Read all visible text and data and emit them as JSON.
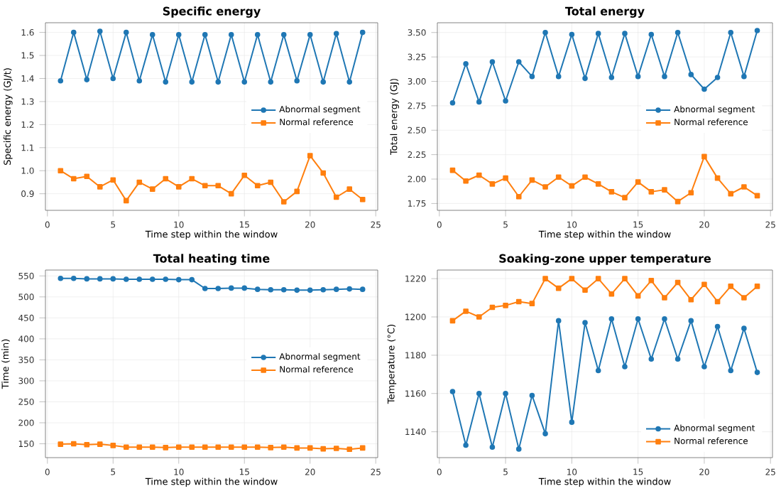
{
  "chart_data": [
    {
      "type": "line",
      "title": "Specific energy",
      "xlabel": "Time step within the window",
      "ylabel": "Specific energy (GJ/t)",
      "grid": true,
      "legend": "right",
      "x": [
        1,
        2,
        3,
        4,
        5,
        6,
        7,
        8,
        9,
        10,
        11,
        12,
        13,
        14,
        15,
        16,
        17,
        18,
        19,
        20,
        21,
        22,
        23,
        24
      ],
      "xlim": [
        -0.15,
        25.15
      ],
      "xticks": [
        0,
        5,
        10,
        15,
        20,
        25
      ],
      "ylim": [
        0.828,
        1.642
      ],
      "yticks": [
        0.9,
        {
          "value": 1.0,
          "label": "1.0"
        },
        1.1,
        1.2,
        1.3,
        1.4,
        1.5,
        1.6
      ],
      "series": [
        {
          "name": "Abnormal segment",
          "color": "#1f77b4",
          "marker": "circle",
          "values": [
            1.39,
            1.6,
            1.395,
            1.605,
            1.4,
            1.6,
            1.39,
            1.59,
            1.385,
            1.59,
            1.385,
            1.59,
            1.385,
            1.59,
            1.385,
            1.59,
            1.385,
            1.59,
            1.39,
            1.59,
            1.385,
            1.595,
            1.385,
            1.6
          ]
        },
        {
          "name": "Normal reference",
          "color": "#ff7f0e",
          "marker": "square",
          "values": [
            1.0,
            0.965,
            0.975,
            0.93,
            0.96,
            0.87,
            0.95,
            0.92,
            0.965,
            0.93,
            0.965,
            0.935,
            0.935,
            0.9,
            0.98,
            0.935,
            0.95,
            0.865,
            0.91,
            1.065,
            0.99,
            0.885,
            0.92,
            0.875
          ]
        }
      ]
    },
    {
      "type": "line",
      "title": "Total energy",
      "xlabel": "Time step within the window",
      "ylabel": "Total energy (GJ)",
      "grid": true,
      "legend": "right",
      "x": [
        1,
        2,
        3,
        4,
        5,
        6,
        7,
        8,
        9,
        10,
        11,
        12,
        13,
        14,
        15,
        16,
        17,
        18,
        19,
        20,
        21,
        22,
        23,
        24
      ],
      "xlim": [
        -0.15,
        25.15
      ],
      "xticks": [
        0,
        5,
        10,
        15,
        20,
        25
      ],
      "ylim": [
        1.68,
        3.6
      ],
      "yticks": [
        {
          "value": 1.75,
          "label": "1.75"
        },
        {
          "value": 2.0,
          "label": "2.00"
        },
        {
          "value": 2.25,
          "label": "2.25"
        },
        {
          "value": 2.5,
          "label": "2.50"
        },
        {
          "value": 2.75,
          "label": "2.75"
        },
        {
          "value": 3.0,
          "label": "3.00"
        },
        {
          "value": 3.25,
          "label": "3.25"
        },
        {
          "value": 3.5,
          "label": "3.50"
        }
      ],
      "series": [
        {
          "name": "Abnormal segment",
          "color": "#1f77b4",
          "marker": "circle",
          "values": [
            2.78,
            3.18,
            2.79,
            3.2,
            2.8,
            3.2,
            3.05,
            3.5,
            3.05,
            3.48,
            3.03,
            3.49,
            3.04,
            3.49,
            3.05,
            3.48,
            3.05,
            3.5,
            3.07,
            2.92,
            3.04,
            3.5,
            3.05,
            3.52
          ]
        },
        {
          "name": "Normal reference",
          "color": "#ff7f0e",
          "marker": "square",
          "values": [
            2.09,
            1.98,
            2.04,
            1.95,
            2.01,
            1.82,
            1.99,
            1.92,
            2.02,
            1.93,
            2.02,
            1.95,
            1.87,
            1.81,
            1.97,
            1.87,
            1.89,
            1.77,
            1.86,
            2.23,
            2.01,
            1.85,
            1.92,
            1.83
          ]
        }
      ]
    },
    {
      "type": "line",
      "title": "Total heating time",
      "xlabel": "Time step within the window",
      "ylabel": "Time (min)",
      "grid": true,
      "legend": "right",
      "x": [
        1,
        2,
        3,
        4,
        5,
        6,
        7,
        8,
        9,
        10,
        11,
        12,
        13,
        14,
        15,
        16,
        17,
        18,
        19,
        20,
        21,
        22,
        23,
        24
      ],
      "xlim": [
        -0.15,
        25.15
      ],
      "xticks": [
        0,
        5,
        10,
        15,
        20,
        25
      ],
      "ylim": [
        117,
        564
      ],
      "yticks": [
        150,
        200,
        250,
        300,
        350,
        400,
        450,
        500,
        550
      ],
      "series": [
        {
          "name": "Abnormal segment",
          "color": "#1f77b4",
          "marker": "circle",
          "values": [
            544,
            544,
            543,
            543,
            543,
            542,
            542,
            542,
            542,
            541,
            541,
            520,
            520,
            521,
            521,
            518,
            517,
            517,
            516,
            516,
            517,
            518,
            519,
            518
          ]
        },
        {
          "name": "Normal reference",
          "color": "#ff7f0e",
          "marker": "square",
          "values": [
            149,
            150,
            148,
            149,
            146,
            142,
            142,
            142,
            141,
            142,
            142,
            142,
            142,
            142,
            142,
            142,
            141,
            142,
            140,
            140,
            138,
            139,
            137,
            140
          ]
        }
      ]
    },
    {
      "type": "line",
      "title": "Soaking-zone upper temperature",
      "xlabel": "Time step within the window",
      "ylabel": "Temperature (°C)",
      "grid": true,
      "legend": "bottom right",
      "x": [
        1,
        2,
        3,
        4,
        5,
        6,
        7,
        8,
        9,
        10,
        11,
        12,
        13,
        14,
        15,
        16,
        17,
        18,
        19,
        20,
        21,
        22,
        23,
        24
      ],
      "xlim": [
        -0.15,
        25.15
      ],
      "xticks": [
        0,
        5,
        10,
        15,
        20,
        25
      ],
      "ylim": [
        1126.5,
        1224.5
      ],
      "yticks": [
        1140,
        1160,
        1180,
        1200,
        1220
      ],
      "series": [
        {
          "name": "Abnormal segment",
          "color": "#1f77b4",
          "marker": "circle",
          "values": [
            1161,
            1133,
            1160,
            1132,
            1160,
            1131,
            1159,
            1139,
            1198,
            1145,
            1197,
            1172,
            1199,
            1174,
            1199,
            1178,
            1199,
            1178,
            1198,
            1174,
            1195,
            1172,
            1194,
            1171
          ]
        },
        {
          "name": "Normal reference",
          "color": "#ff7f0e",
          "marker": "square",
          "values": [
            1198,
            1203,
            1200,
            1205,
            1206,
            1208,
            1207,
            1220,
            1215,
            1220,
            1214,
            1220,
            1212,
            1220,
            1211,
            1219,
            1210,
            1218,
            1209,
            1217,
            1208,
            1216,
            1210,
            1216
          ]
        }
      ]
    }
  ]
}
